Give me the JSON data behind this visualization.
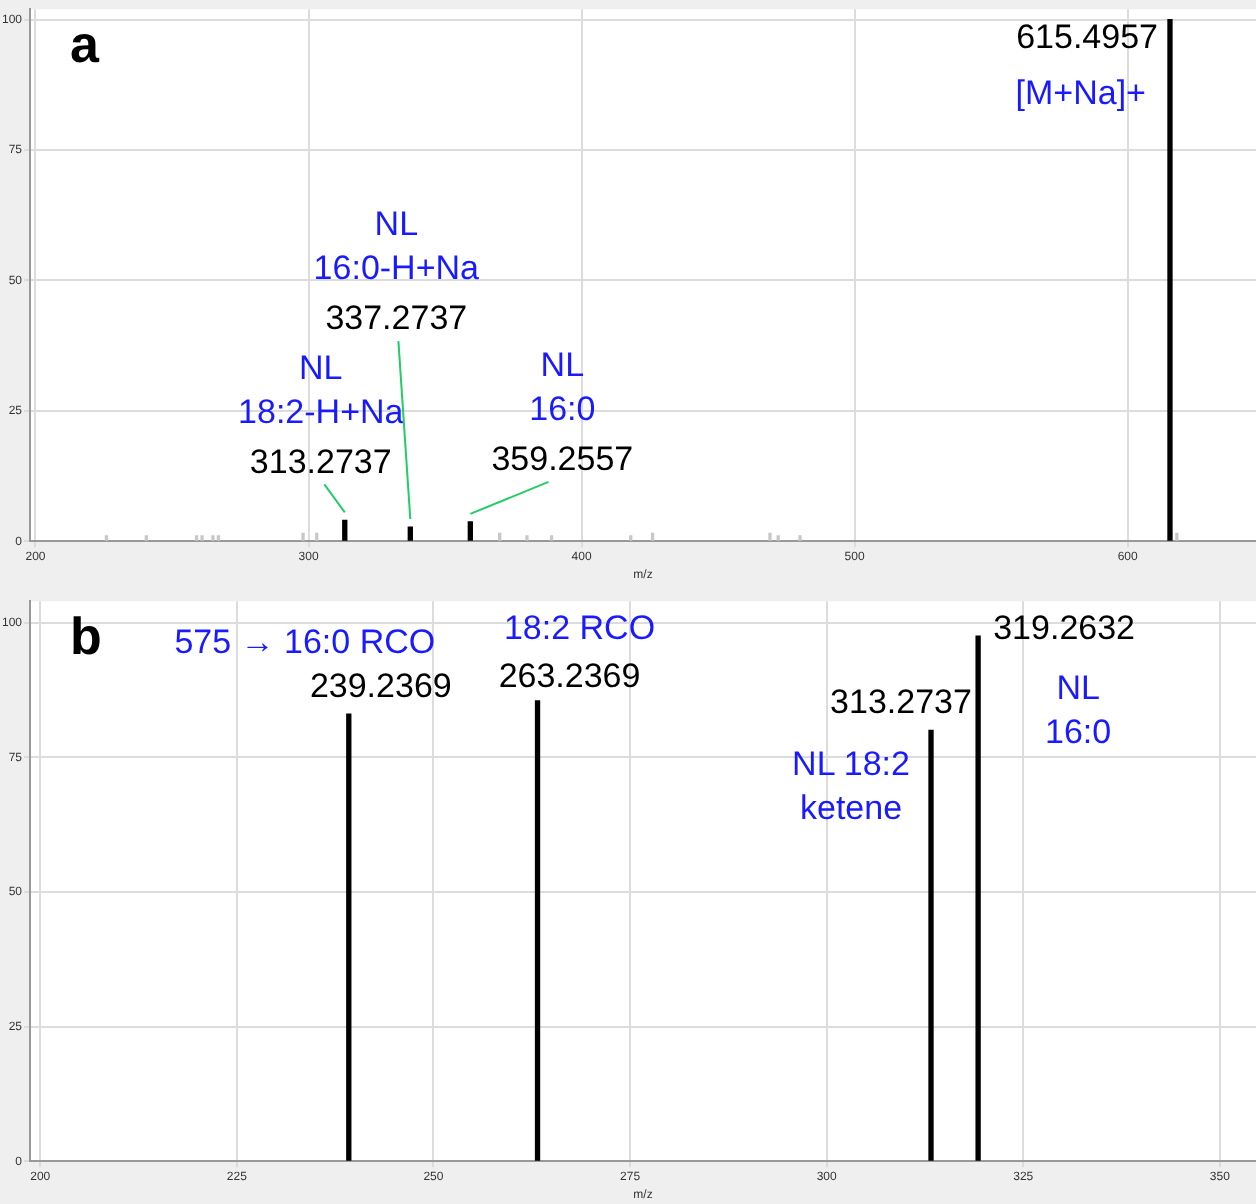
{
  "chart_data": [
    {
      "type": "bar",
      "title": "a",
      "xlabel": "m/z",
      "xlim": [
        198,
        647
      ],
      "ylim": [
        0,
        102
      ],
      "xticks": [
        200,
        300,
        400,
        500,
        600
      ],
      "yticks": [
        0,
        25,
        50,
        75,
        100
      ],
      "grid": true,
      "series": [
        {
          "color": "#000000",
          "x": [
            313.2737,
            337.2737,
            359.2557,
            615.4957
          ],
          "values": [
            4,
            2.7,
            3.7,
            100
          ]
        },
        {
          "color": "#c8c8c8",
          "x": [
            226,
            240.6,
            259,
            261,
            265,
            267,
            298,
            303,
            370,
            380,
            389,
            418,
            426,
            469,
            472,
            480,
            618
          ],
          "values": [
            1,
            1,
            1,
            1,
            1,
            1,
            1.5,
            1.5,
            1.5,
            1,
            1,
            1,
            1.5,
            1.5,
            1,
            1,
            1.5
          ]
        }
      ],
      "annotations": [
        {
          "text": "NL\n18:2-H+Na\n313.2737",
          "x": 313.2737,
          "y": 4
        },
        {
          "text": "NL\n16:0-H+Na\n337.2737",
          "x": 337.2737,
          "y": 2.7
        },
        {
          "text": "NL\n16:0\n359.2557",
          "x": 359.2557,
          "y": 3.7
        },
        {
          "text": "615.4957",
          "x": 615.4957,
          "y": 100
        },
        {
          "text": "[M+Na]+",
          "x": 615.4957,
          "y": 100
        }
      ]
    },
    {
      "type": "bar",
      "title": "b",
      "xlabel": "m/z",
      "xlim": [
        198.7,
        354.6
      ],
      "ylim": [
        0,
        104
      ],
      "xticks": [
        200,
        225,
        250,
        275,
        300,
        325,
        350
      ],
      "yticks": [
        0,
        25,
        50,
        75,
        100
      ],
      "grid": true,
      "series": [
        {
          "color": "#000000",
          "x": [
            239.2369,
            263.2369,
            313.2737,
            319.2632
          ],
          "values": [
            83,
            85.5,
            80,
            97.5
          ]
        }
      ],
      "annotations": [
        {
          "text": "239.2369",
          "x": 239.2369,
          "y": 83
        },
        {
          "text": "575 → 16:0 RCO",
          "x": 239.2369,
          "y": 83
        },
        {
          "text": "263.2369",
          "x": 263.2369,
          "y": 85.5
        },
        {
          "text": "18:2 RCO",
          "x": 263.2369,
          "y": 85.5
        },
        {
          "text": "313.2737",
          "x": 313.2737,
          "y": 80
        },
        {
          "text": "NL 18:2\nketene",
          "x": 313.2737,
          "y": 80
        },
        {
          "text": "319.2632",
          "x": 319.2632,
          "y": 97.5
        },
        {
          "text": "NL\n16:0",
          "x": 319.2632,
          "y": 97.5
        }
      ]
    }
  ]
}
